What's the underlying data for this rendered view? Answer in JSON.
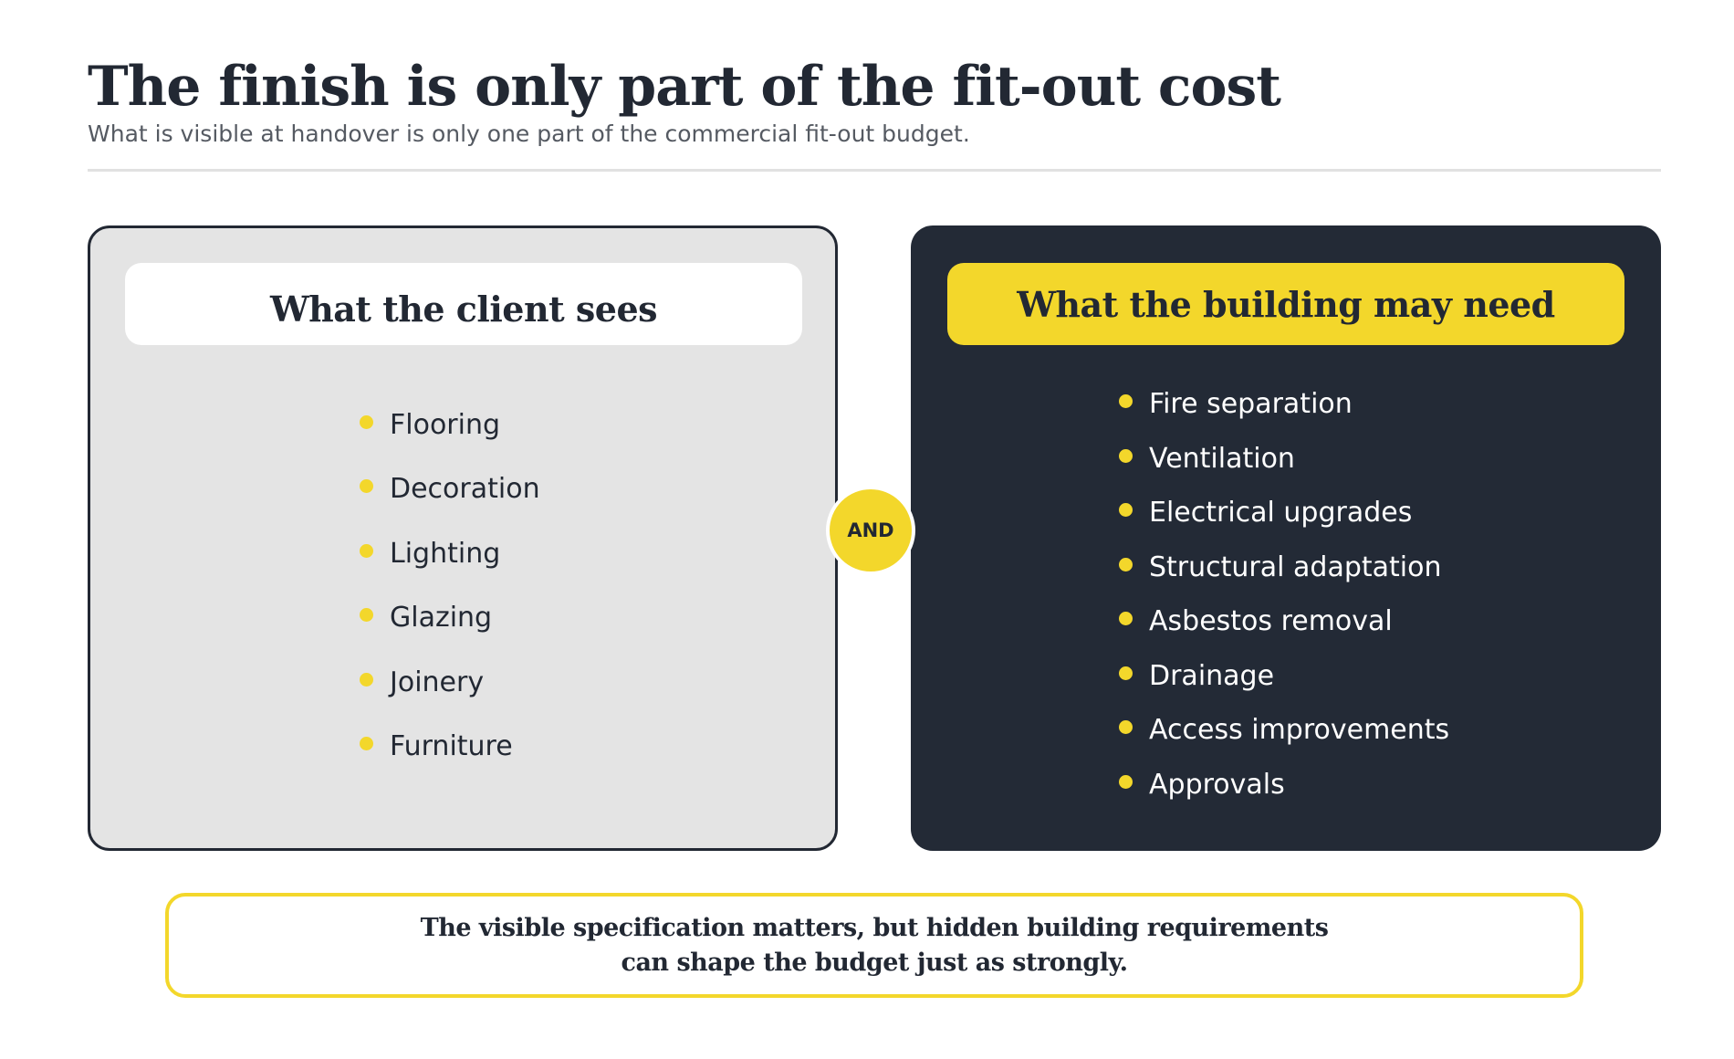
{
  "header": {
    "title": "The finish is only part of the fit-out cost",
    "subtitle": "What is visible at handover is only one part of the commercial fit-out budget."
  },
  "left_panel": {
    "heading": "What the client sees",
    "items": [
      "Flooring",
      "Decoration",
      "Lighting",
      "Glazing",
      "Joinery",
      "Furniture"
    ]
  },
  "connector": {
    "label": "AND"
  },
  "right_panel": {
    "heading": "What the building may need",
    "items": [
      "Fire separation",
      "Ventilation",
      "Electrical upgrades",
      "Structural adaptation",
      "Asbestos removal",
      "Drainage",
      "Access improvements",
      "Approvals"
    ]
  },
  "callout": {
    "line1": "The visible specification matters, but hidden building requirements",
    "line2": "can shape the budget just as strongly."
  },
  "colors": {
    "accent": "#f3d72b",
    "dark": "#232a36",
    "light_panel": "#e4e4e4",
    "text": "#222833"
  }
}
